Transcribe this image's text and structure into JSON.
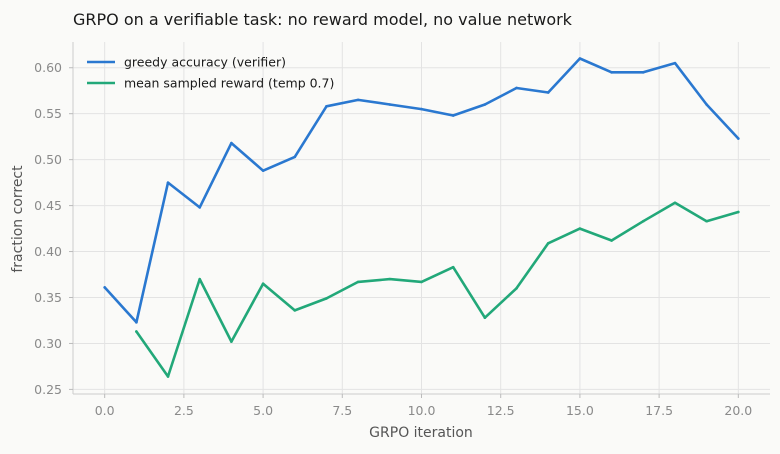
{
  "chart_data": {
    "type": "line",
    "title": "GRPO on a verifiable task: no reward model, no value network",
    "xlabel": "GRPO iteration",
    "ylabel": "fraction correct",
    "xlim": [
      -1,
      21
    ],
    "ylim": [
      0.245,
      0.628
    ],
    "xticks": [
      0.0,
      2.5,
      5.0,
      7.5,
      10.0,
      12.5,
      15.0,
      17.5,
      20.0
    ],
    "xtick_labels": [
      "0.0",
      "2.5",
      "5.0",
      "7.5",
      "10.0",
      "12.5",
      "15.0",
      "17.5",
      "20.0"
    ],
    "yticks": [
      0.25,
      0.3,
      0.35,
      0.4,
      0.45,
      0.5,
      0.55,
      0.6
    ],
    "ytick_labels": [
      "0.25",
      "0.30",
      "0.35",
      "0.40",
      "0.45",
      "0.50",
      "0.55",
      "0.60"
    ],
    "grid": true,
    "legend_position": "top-left",
    "series": [
      {
        "name": "greedy accuracy (verifier)",
        "color": "#2a78d0",
        "x": [
          0,
          1,
          2,
          3,
          4,
          5,
          6,
          7,
          8,
          9,
          10,
          11,
          12,
          13,
          14,
          15,
          16,
          17,
          18,
          19,
          20
        ],
        "values": [
          0.361,
          0.323,
          0.475,
          0.448,
          0.518,
          0.488,
          0.503,
          0.558,
          0.565,
          0.56,
          0.555,
          0.548,
          0.56,
          0.578,
          0.573,
          0.61,
          0.595,
          0.595,
          0.605,
          0.56,
          0.523
        ]
      },
      {
        "name": "mean sampled reward (temp 0.7)",
        "color": "#22a879",
        "x": [
          1,
          2,
          3,
          4,
          5,
          6,
          7,
          8,
          9,
          10,
          11,
          12,
          13,
          14,
          15,
          16,
          17,
          18,
          19,
          20
        ],
        "values": [
          0.313,
          0.264,
          0.37,
          0.302,
          0.365,
          0.336,
          0.349,
          0.367,
          0.37,
          0.367,
          0.383,
          0.328,
          0.36,
          0.409,
          0.425,
          0.412,
          0.433,
          0.453,
          0.433,
          0.443
        ]
      }
    ]
  }
}
